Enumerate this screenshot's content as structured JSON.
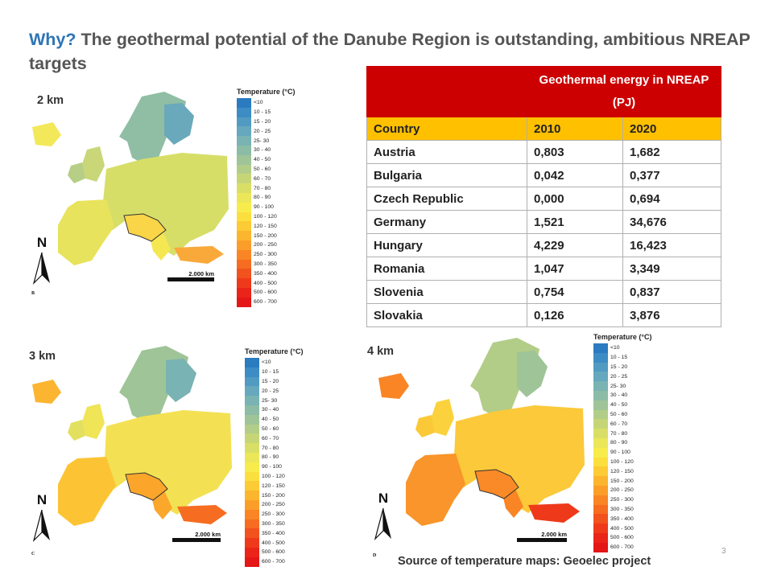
{
  "slide": {
    "title_lead": "Why?",
    "title_rest": "The geothermal potential of the Danube Region is outstanding, ambitious NREAP targets",
    "source": "Source of temperature maps: Geoelec project",
    "page_number": "3"
  },
  "maps": [
    {
      "depth": "2 km",
      "letter": "B",
      "legend_title": "Temperature (°C)",
      "scale_label": "2.000 km",
      "north": "N"
    },
    {
      "depth": "3 km",
      "letter": "C",
      "legend_title": "Temperature (°C)",
      "scale_label": "2.000 km",
      "north": "N"
    },
    {
      "depth": "4 km",
      "letter": "D",
      "legend_title": "Temperature (°C)",
      "scale_label": "2.000 km",
      "north": "N"
    }
  ],
  "legend": [
    {
      "label": "<10",
      "color": "#2b7bc0"
    },
    {
      "label": "10 - 15",
      "color": "#3d8cc4"
    },
    {
      "label": "15 - 20",
      "color": "#519bc2"
    },
    {
      "label": "20 - 25",
      "color": "#66a8bd"
    },
    {
      "label": "25- 30",
      "color": "#79b3b3"
    },
    {
      "label": "30 - 40",
      "color": "#8cbca6"
    },
    {
      "label": "40 - 50",
      "color": "#9ec498"
    },
    {
      "label": "50 - 60",
      "color": "#b2cd88"
    },
    {
      "label": "60 - 70",
      "color": "#c6d677"
    },
    {
      "label": "70 - 80",
      "color": "#d9df66"
    },
    {
      "label": "80 - 90",
      "color": "#ebe759"
    },
    {
      "label": "90 - 100",
      "color": "#f7ec4c"
    },
    {
      "label": "100 - 120",
      "color": "#fbdf3e"
    },
    {
      "label": "120 - 150",
      "color": "#fccb35"
    },
    {
      "label": "150 - 200",
      "color": "#fcb52e"
    },
    {
      "label": "200 - 250",
      "color": "#fb9e29"
    },
    {
      "label": "250 - 300",
      "color": "#f98525"
    },
    {
      "label": "300 - 350",
      "color": "#f66c21"
    },
    {
      "label": "350 - 400",
      "color": "#f2521d"
    },
    {
      "label": "400 - 500",
      "color": "#ee3a1a"
    },
    {
      "label": "500 - 600",
      "color": "#ea2418"
    },
    {
      "label": "600 - 700",
      "color": "#e51616"
    }
  ],
  "table": {
    "header_title": "Geothermal energy in NREAP (PJ)",
    "columns": [
      "Country",
      "2010",
      "2020"
    ],
    "rows": [
      [
        "Austria",
        "0,803",
        "1,682"
      ],
      [
        "Bulgaria",
        "0,042",
        "0,377"
      ],
      [
        "Czech Republic",
        "0,000",
        "0,694"
      ],
      [
        "Germany",
        "1,521",
        "34,676"
      ],
      [
        "Hungary",
        "4,229",
        "16,423"
      ],
      [
        "Romania",
        "1,047",
        "3,349"
      ],
      [
        "Slovenia",
        "0,754",
        "0,837"
      ],
      [
        "Slovakia",
        "0,126",
        "3,876"
      ]
    ]
  }
}
